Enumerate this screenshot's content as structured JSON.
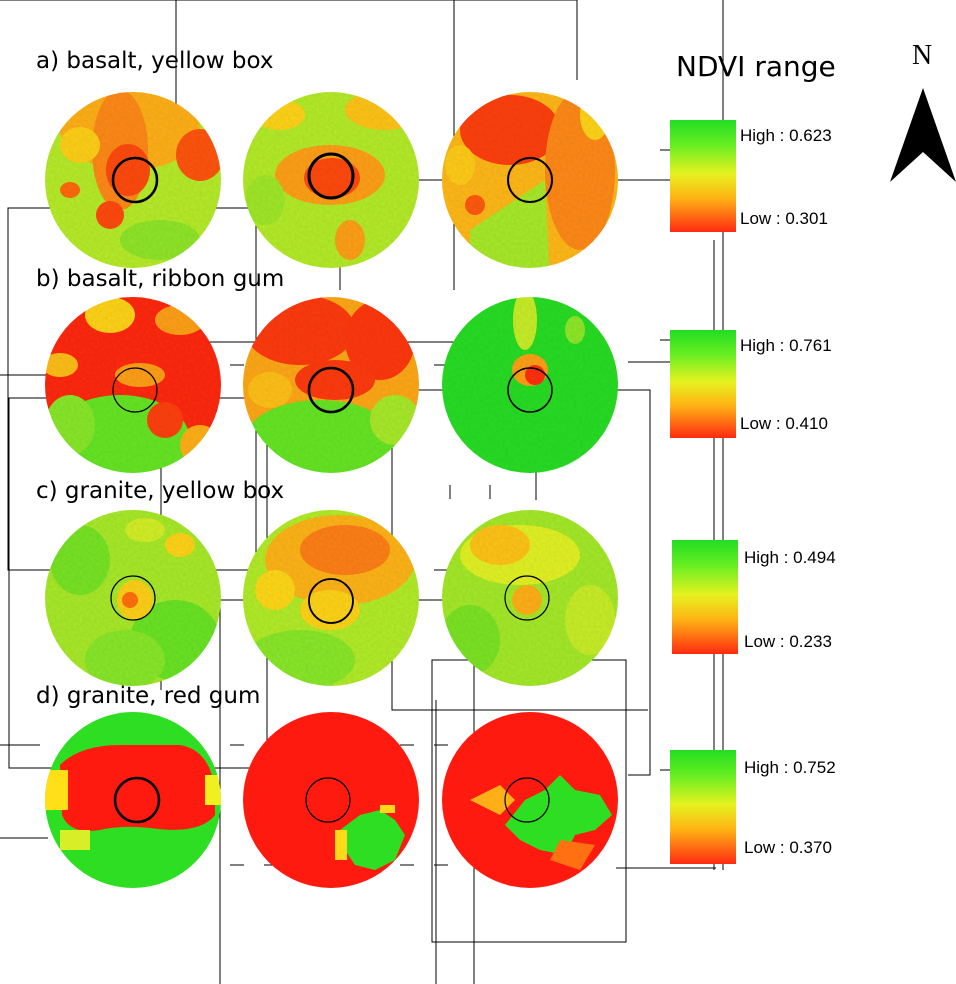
{
  "legend": {
    "title": "NDVI range",
    "entries": [
      {
        "high": "High : 0.623",
        "low": "Low : 0.301"
      },
      {
        "high": "High : 0.761",
        "low": "Low : 0.410"
      },
      {
        "high": "High : 0.494",
        "low": "Low : 0.233"
      },
      {
        "high": "High : 0.752",
        "low": "Low : 0.370"
      }
    ]
  },
  "north_arrow": {
    "label": "N"
  },
  "rows": [
    {
      "label": "a) basalt, yellow box"
    },
    {
      "label": "b) basalt, ribbon gum"
    },
    {
      "label": "c) granite, yellow box"
    },
    {
      "label": "d) granite, red gum"
    }
  ],
  "colors": {
    "high": "#22dd22",
    "mid": "#e6f21f",
    "low": "#ff2a12"
  }
}
